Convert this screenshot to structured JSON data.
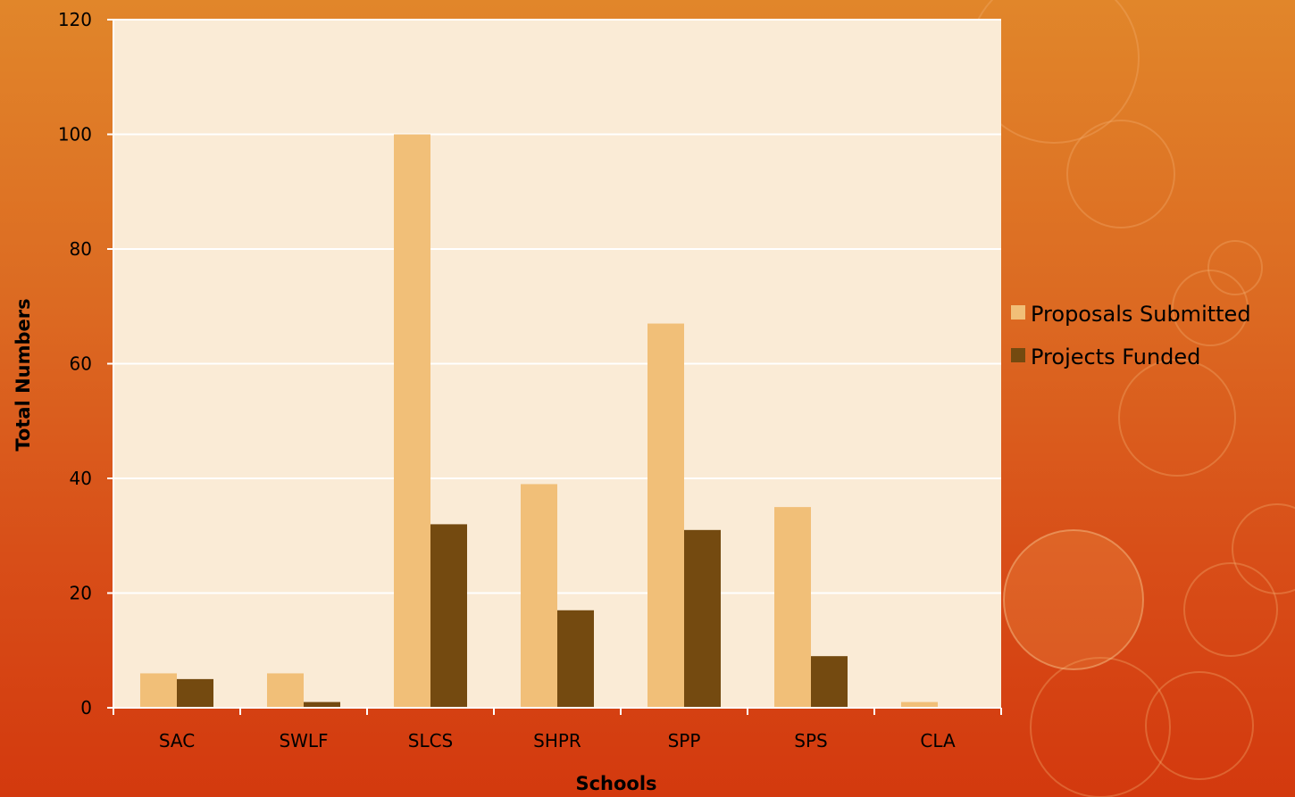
{
  "colors": {
    "plot_bg": "#faebd6",
    "proposals": "#f1bf78",
    "funded": "#744a10",
    "gridline": "#ffffff",
    "axis": "#ffffff"
  },
  "chart_data": {
    "type": "bar",
    "title": "",
    "xlabel": "Schools",
    "ylabel": "Total Numbers",
    "categories": [
      "SAC",
      "SWLF",
      "SLCS",
      "SHPR",
      "SPP",
      "SPS",
      "CLA"
    ],
    "series": [
      {
        "name": "Proposals Submitted",
        "values": [
          6,
          6,
          100,
          39,
          67,
          35,
          1
        ]
      },
      {
        "name": "Projects Funded",
        "values": [
          5,
          1,
          32,
          17,
          31,
          9,
          0
        ]
      }
    ],
    "ylim": [
      0,
      120
    ],
    "yticks": [
      0,
      20,
      40,
      60,
      80,
      100,
      120
    ],
    "grid": true,
    "legend": "right"
  }
}
